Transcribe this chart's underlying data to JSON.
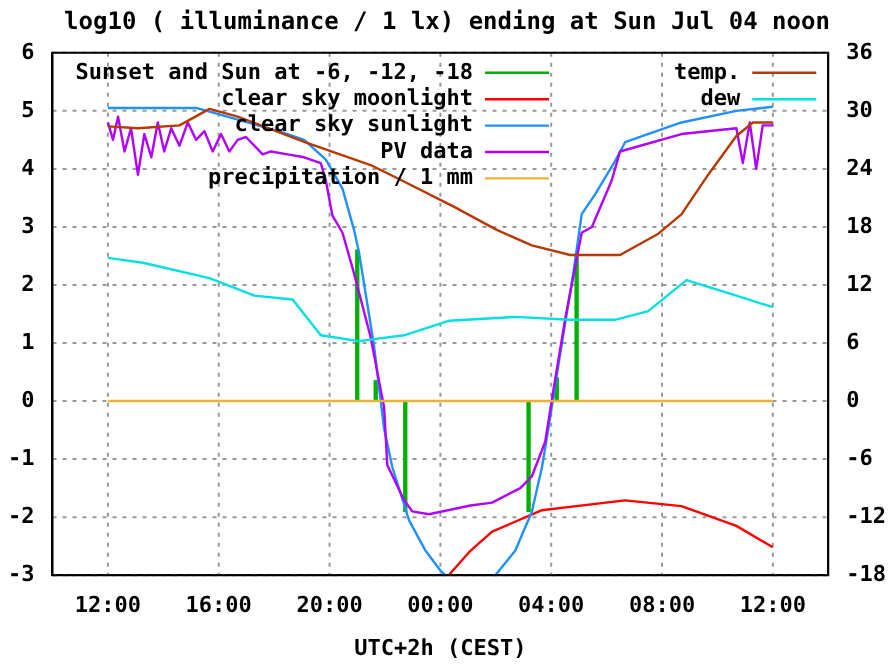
{
  "chart_data": {
    "type": "line",
    "title": "log10 ( illuminance / 1 lx) ending at Sun Jul 04 noon",
    "xlabel": "UTC+2h (CEST)",
    "xlim": [
      "--07-03T12:00",
      "--07-04T12:00"
    ],
    "xticks": [
      {
        "value": "--07-03T12:00",
        "label": "12:00"
      },
      {
        "value": "--07-03T16:00",
        "label": "16:00"
      },
      {
        "value": "--07-03T20:00",
        "label": "20:00"
      },
      {
        "value": "--07-04T00:00",
        "label": "00:00"
      },
      {
        "value": "--07-04T04:00",
        "label": "04:00"
      },
      {
        "value": "--07-04T08:00",
        "label": "08:00"
      },
      {
        "value": "--07-04T12:00",
        "label": "12:00"
      }
    ],
    "ylim": [
      -3,
      6
    ],
    "yticks": [
      -3,
      -2,
      -1,
      0,
      1,
      2,
      3,
      4,
      5,
      6
    ],
    "y2lim": [
      -18,
      36
    ],
    "y2ticks": [
      -18,
      -12,
      -6,
      0,
      6,
      12,
      18,
      24,
      30,
      36
    ],
    "grid": true,
    "legend": "top",
    "series": [
      {
        "name": "Sunset and Sun at -6, -12, -18",
        "type": "bar",
        "color": "#00b000",
        "x": [
          "--07-03T21:00",
          "--07-03T21:40",
          "--07-03T22:44",
          "--07-04T03:11",
          "--07-04T04:12",
          "--07-04T04:55"
        ],
        "values": [
          2.6,
          0.35,
          -1.9,
          -1.9,
          0.4,
          2.5
        ]
      },
      {
        "name": "clear sky moonlight",
        "color": "#ff0000",
        "x": [
          "--07-04T00:18",
          "--07-04T01:05",
          "--07-04T01:52",
          "--07-04T03:40",
          "--07-04T06:40",
          "--07-04T08:42",
          "--07-04T10:41",
          "--07-04T12:00"
        ],
        "values": [
          -3,
          -2.58,
          -2.25,
          -1.88,
          -1.71,
          -1.81,
          -2.15,
          -2.52
        ]
      },
      {
        "name": "clear sky sunlight",
        "color": "#2090ff",
        "x": [
          "--07-03T12:00",
          "--07-03T15:11",
          "--07-03T18:18",
          "--07-03T19:05",
          "--07-03T19:52",
          "--07-03T20:28",
          "--07-03T20:53",
          "--07-03T21:04",
          "--07-03T21:36",
          "--07-03T21:58",
          "--07-03T22:16",
          "--07-03T22:52",
          "--07-03T23:28",
          "--07-04T00:00",
          "--07-04T00:11",
          "--07-04T01:00",
          "--07-04T01:59",
          "--07-04T02:42",
          "--07-04T03:18",
          "--07-04T03:40",
          "--07-04T03:54",
          "--07-04T04:16",
          "--07-04T04:48",
          "--07-04T05:06",
          "--07-04T05:35",
          "--07-04T06:18",
          "--07-04T06:40",
          "--07-04T08:42",
          "--07-04T10:41",
          "--07-04T12:00"
        ],
        "values": [
          5.05,
          5.05,
          4.63,
          4.5,
          4.16,
          3.66,
          2.95,
          2.55,
          0.97,
          -0.47,
          -1.14,
          -2.05,
          -2.58,
          -2.92,
          -3,
          null,
          -3,
          -2.58,
          -1.91,
          -1.14,
          -0.47,
          0.64,
          2.21,
          3.22,
          3.56,
          4.13,
          4.46,
          4.8,
          5.0,
          5.07
        ]
      },
      {
        "name": "PV data",
        "color": "#b000ff",
        "x": [
          "--07-03T12:00",
          "--07-03T12:11",
          "--07-03T12:22",
          "--07-03T12:36",
          "--07-03T12:50",
          "--07-03T13:05",
          "--07-03T13:19",
          "--07-03T13:34",
          "--07-03T13:48",
          "--07-03T14:02",
          "--07-03T14:17",
          "--07-03T14:35",
          "--07-03T14:53",
          "--07-03T15:11",
          "--07-03T15:29",
          "--07-03T15:47",
          "--07-03T16:05",
          "--07-03T16:23",
          "--07-03T16:41",
          "--07-03T16:59",
          "--07-03T17:17",
          "--07-03T17:35",
          "--07-03T17:53",
          "--07-03T18:29",
          "--07-03T19:05",
          "--07-03T19:41",
          "--07-03T19:52",
          "--07-03T20:06",
          "--07-03T20:28",
          "--07-03T20:53",
          "--07-03T21:29",
          "--07-03T21:58",
          "--07-03T22:05",
          "--07-03T22:41",
          "--07-03T22:59",
          "--07-03T23:35",
          "--07-04T01:05",
          "--07-04T01:52",
          "--07-04T02:53",
          "--07-04T03:18",
          "--07-04T03:47",
          "--07-04T04:05",
          "--07-04T04:30",
          "--07-04T05:06",
          "--07-04T05:28",
          "--07-04T06:11",
          "--07-04T06:29",
          "--07-04T08:42",
          "--07-04T10:41",
          "--07-04T10:55",
          "--07-04T11:10",
          "--07-04T11:24",
          "--07-04T11:38",
          "--07-04T12:00"
        ],
        "values": [
          4.8,
          4.5,
          4.9,
          4.3,
          4.7,
          3.9,
          4.6,
          4.2,
          4.8,
          4.3,
          4.7,
          4.4,
          4.8,
          4.5,
          4.65,
          4.3,
          4.6,
          4.3,
          4.5,
          4.55,
          4.4,
          4.25,
          4.3,
          4.25,
          4.2,
          4.1,
          3.8,
          3.2,
          2.9,
          2.2,
          1.1,
          -0.1,
          -1.1,
          -1.7,
          -1.9,
          -1.95,
          -1.8,
          -1.75,
          -1.5,
          -1.3,
          -0.7,
          0.2,
          1.4,
          2.9,
          3.0,
          3.8,
          4.3,
          4.6,
          4.7,
          4.1,
          4.8,
          4.0,
          4.75,
          4.75
        ]
      },
      {
        "name": "precipitation / 1 mm",
        "color": "#f0b030",
        "x": [
          "--07-03T12:00",
          "--07-04T12:00"
        ],
        "values": [
          0,
          0
        ]
      },
      {
        "name": "temp.",
        "color": "#b83800",
        "axis": "y2",
        "x": [
          "--07-03T12:00",
          "--07-03T13:05",
          "--07-03T14:35",
          "--07-03T15:40",
          "--07-03T16:41",
          "--07-03T19:05",
          "--07-03T21:29",
          "--07-03T22:41",
          "--07-04T00:29",
          "--07-04T02:02",
          "--07-04T03:18",
          "--07-04T04:41",
          "--07-04T06:29",
          "--07-04T07:52",
          "--07-04T08:42",
          "--07-04T09:40",
          "--07-04T10:41",
          "--07-04T11:17",
          "--07-04T12:00"
        ],
        "values": [
          28.4,
          28.2,
          28.5,
          30.2,
          29.4,
          26.8,
          24.4,
          22.7,
          20.1,
          17.7,
          16.1,
          15.1,
          15.1,
          17.3,
          19.3,
          23.4,
          27.4,
          28.8,
          28.8
        ]
      },
      {
        "name": "dew",
        "color": "#00e0e0",
        "axis": "y2",
        "x": [
          "--07-03T12:00",
          "--07-03T13:16",
          "--07-03T15:40",
          "--07-03T17:17",
          "--07-03T18:40",
          "--07-03T19:41",
          "--07-03T21:04",
          "--07-03T22:41",
          "--07-04T00:18",
          "--07-04T02:42",
          "--07-04T04:41",
          "--07-04T06:18",
          "--07-04T07:30",
          "--07-04T08:53",
          "--07-04T10:41",
          "--07-04T12:00"
        ],
        "values": [
          14.8,
          14.3,
          12.7,
          10.9,
          10.5,
          6.8,
          6.2,
          6.8,
          8.3,
          8.7,
          8.4,
          8.4,
          9.3,
          12.5,
          10.9,
          9.7
        ]
      }
    ]
  }
}
